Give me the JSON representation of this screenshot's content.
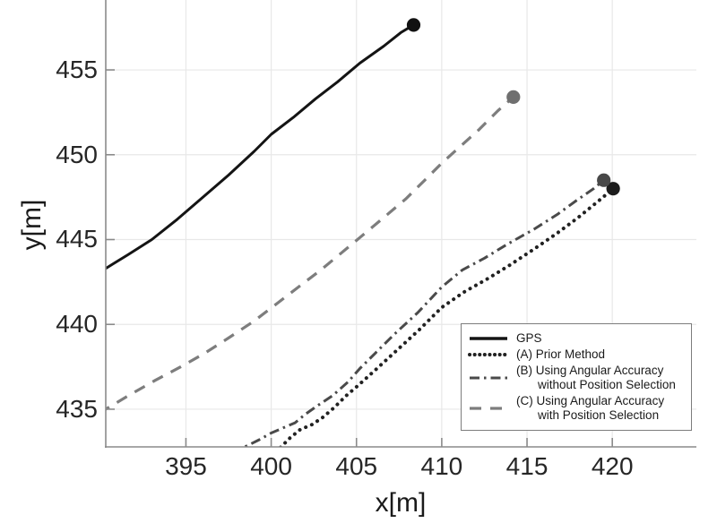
{
  "chart_data": {
    "type": "line",
    "title": "",
    "xlabel": "x[m]",
    "ylabel": "y[m]",
    "xlim": [
      390.3,
      424.93
    ],
    "ylim": [
      432.78,
      459.12
    ],
    "xticks": [
      395,
      400,
      405,
      410,
      415,
      420
    ],
    "yticks": [
      435,
      440,
      445,
      450,
      455
    ],
    "grid": true,
    "legend_position": "inside lower right",
    "colors": {
      "background": "#ffffff",
      "grid": "#e8e8e8",
      "axis": "#8a8a8a",
      "tick_text": "#262626",
      "legend_border": "#7d7d7d"
    },
    "series": [
      {
        "key": "gps",
        "name": "GPS",
        "style": "solid",
        "color": "#141414",
        "marker_color": "#111111",
        "endpoint": [
          408.35,
          457.65
        ],
        "points": [
          [
            390.0,
            443.1
          ],
          [
            390.3,
            443.3
          ],
          [
            391.6,
            444.1
          ],
          [
            393.0,
            445.0
          ],
          [
            394.5,
            446.2
          ],
          [
            396.0,
            447.5
          ],
          [
            397.5,
            448.8
          ],
          [
            399.0,
            450.2
          ],
          [
            400.0,
            451.2
          ],
          [
            401.3,
            452.2
          ],
          [
            402.6,
            453.3
          ],
          [
            403.9,
            454.3
          ],
          [
            405.2,
            455.4
          ],
          [
            406.6,
            456.4
          ],
          [
            407.6,
            457.2
          ],
          [
            408.35,
            457.65
          ]
        ]
      },
      {
        "key": "method-a",
        "name": "(A) Prior Method",
        "style": "dotted",
        "color": "#212121",
        "marker_color": "#1c1c1c",
        "endpoint": [
          420.05,
          448.0
        ],
        "points": [
          [
            400.0,
            432.2
          ],
          [
            400.6,
            432.8
          ],
          [
            401.1,
            433.3
          ],
          [
            401.7,
            433.8
          ],
          [
            402.4,
            434.1
          ],
          [
            403.0,
            434.5
          ],
          [
            403.7,
            435.1
          ],
          [
            404.4,
            435.8
          ],
          [
            405.1,
            436.4
          ],
          [
            406.2,
            437.4
          ],
          [
            407.4,
            438.5
          ],
          [
            408.7,
            439.7
          ],
          [
            410.0,
            441.0
          ],
          [
            411.3,
            441.9
          ],
          [
            412.7,
            442.7
          ],
          [
            414.0,
            443.5
          ],
          [
            415.5,
            444.5
          ],
          [
            416.8,
            445.4
          ],
          [
            418.0,
            446.3
          ],
          [
            419.1,
            447.2
          ],
          [
            420.05,
            448.0
          ]
        ]
      },
      {
        "key": "method-b",
        "name": "(B) Using Angular Accuracy without Position Selection",
        "style": "dashdot",
        "color": "#4a4a4a",
        "marker_color": "#484848",
        "endpoint": [
          419.5,
          448.5
        ],
        "points": [
          [
            397.8,
            432.3
          ],
          [
            398.5,
            432.8
          ],
          [
            399.3,
            433.2
          ],
          [
            400.0,
            433.6
          ],
          [
            400.7,
            433.9
          ],
          [
            401.4,
            434.2
          ],
          [
            402.0,
            434.7
          ],
          [
            402.7,
            435.2
          ],
          [
            403.6,
            435.8
          ],
          [
            404.5,
            436.6
          ],
          [
            405.2,
            437.4
          ],
          [
            406.1,
            438.3
          ],
          [
            407.2,
            439.4
          ],
          [
            408.6,
            440.7
          ],
          [
            410.0,
            442.2
          ],
          [
            411.2,
            443.2
          ],
          [
            412.5,
            443.9
          ],
          [
            413.8,
            444.7
          ],
          [
            415.4,
            445.6
          ],
          [
            416.8,
            446.5
          ],
          [
            417.9,
            447.3
          ],
          [
            418.9,
            448.0
          ],
          [
            419.5,
            448.5
          ]
        ]
      },
      {
        "key": "method-c",
        "name": "(C) Using Angular Accuracy with Position Selection",
        "style": "dashed",
        "color": "#7d7d7d",
        "marker_color": "#6f6f6f",
        "endpoint": [
          414.2,
          453.4
        ],
        "points": [
          [
            389.9,
            434.8
          ],
          [
            390.3,
            435.0
          ],
          [
            391.8,
            435.9
          ],
          [
            393.2,
            436.7
          ],
          [
            394.7,
            437.5
          ],
          [
            396.1,
            438.3
          ],
          [
            397.5,
            439.2
          ],
          [
            399.0,
            440.2
          ],
          [
            400.3,
            441.2
          ],
          [
            401.6,
            442.2
          ],
          [
            402.9,
            443.2
          ],
          [
            404.1,
            444.2
          ],
          [
            405.3,
            445.2
          ],
          [
            406.6,
            446.3
          ],
          [
            407.9,
            447.4
          ],
          [
            409.0,
            448.5
          ],
          [
            410.0,
            449.5
          ],
          [
            411.1,
            450.5
          ],
          [
            412.2,
            451.5
          ],
          [
            413.3,
            452.6
          ],
          [
            414.2,
            453.4
          ]
        ]
      }
    ],
    "legend": {
      "entries": [
        {
          "series": 0,
          "lines": [
            "GPS"
          ]
        },
        {
          "series": 1,
          "lines": [
            "(A) Prior Method"
          ]
        },
        {
          "series": 2,
          "lines": [
            "(B) Using Angular Accuracy",
            "without Position Selection"
          ]
        },
        {
          "series": 3,
          "lines": [
            "(C) Using Angular Accuracy",
            "with Position Selection"
          ]
        }
      ]
    }
  }
}
